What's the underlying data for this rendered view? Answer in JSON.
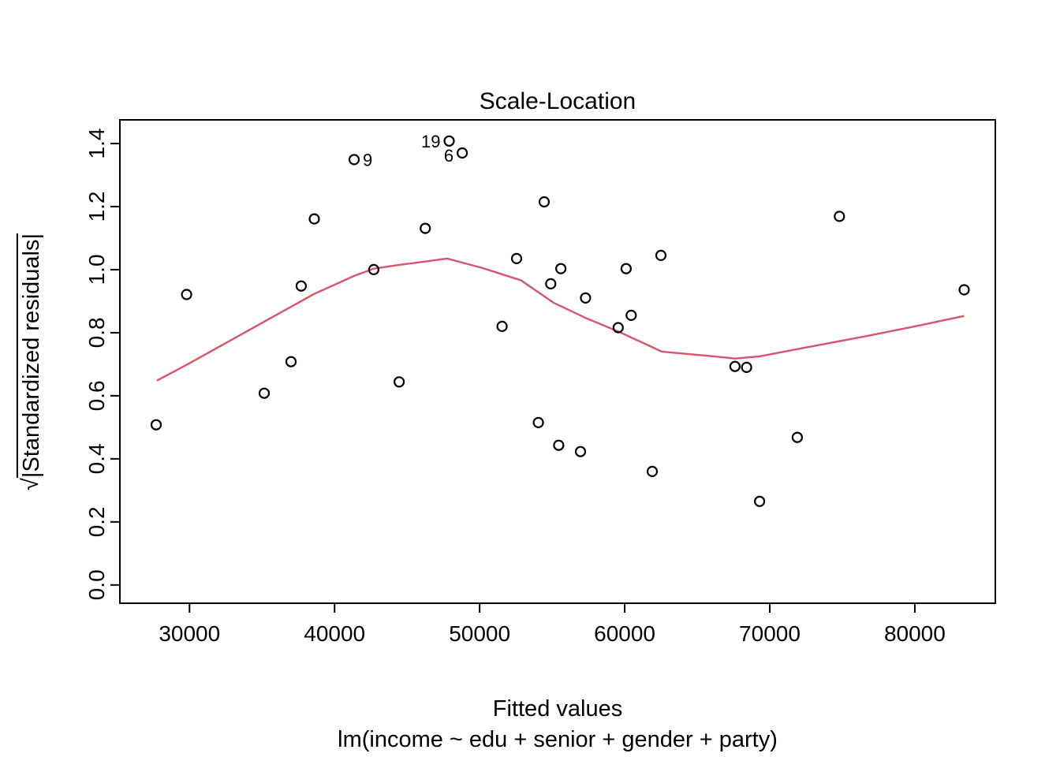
{
  "title": "Scale-Location",
  "x_axis": {
    "label": "Fitted values",
    "sub_label": "lm(income ~ edu + senior + gender + party)",
    "tick_values": [
      30000,
      40000,
      50000,
      60000,
      70000,
      80000
    ],
    "tick_labels": [
      "30000",
      "40000",
      "50000",
      "60000",
      "70000",
      "80000"
    ],
    "range": [
      25200,
      85550
    ]
  },
  "y_axis": {
    "sqrt_symbol": "√",
    "label": "|Standardized residuals|",
    "tick_values": [
      0.0,
      0.2,
      0.4,
      0.6,
      0.8,
      1.0,
      1.2,
      1.4
    ],
    "tick_labels": [
      "0.0",
      "0.2",
      "0.4",
      "0.6",
      "0.8",
      "1.0",
      "1.2",
      "1.4"
    ],
    "range": [
      -0.058,
      1.475
    ]
  },
  "colors": {
    "foreground": "#000000",
    "smooth_line": "#d9546a",
    "background": "#ffffff"
  },
  "chart_data": {
    "type": "scatter",
    "title": "Scale-Location",
    "xlabel": "Fitted values",
    "ylabel": "sqrt(|Standardized residuals|)",
    "xlim": [
      25200,
      85550
    ],
    "ylim": [
      -0.058,
      1.475
    ],
    "grid": false,
    "legend": "none",
    "points": [
      {
        "x": 27700,
        "y": 0.508
      },
      {
        "x": 29800,
        "y": 0.921
      },
      {
        "x": 35150,
        "y": 0.608
      },
      {
        "x": 37000,
        "y": 0.708
      },
      {
        "x": 37700,
        "y": 0.948
      },
      {
        "x": 38600,
        "y": 1.161
      },
      {
        "x": 41350,
        "y": 1.349,
        "label": "9",
        "label_side": "right"
      },
      {
        "x": 42700,
        "y": 1.0
      },
      {
        "x": 44450,
        "y": 0.644
      },
      {
        "x": 46250,
        "y": 1.131
      },
      {
        "x": 47900,
        "y": 1.408,
        "label": "19",
        "label_side": "left"
      },
      {
        "x": 48800,
        "y": 1.37,
        "label": "6",
        "label_side": "left"
      },
      {
        "x": 51550,
        "y": 0.82
      },
      {
        "x": 52550,
        "y": 1.035
      },
      {
        "x": 54050,
        "y": 0.515
      },
      {
        "x": 54450,
        "y": 1.215
      },
      {
        "x": 54900,
        "y": 0.955
      },
      {
        "x": 55450,
        "y": 0.443
      },
      {
        "x": 55600,
        "y": 1.003
      },
      {
        "x": 56950,
        "y": 0.423
      },
      {
        "x": 57300,
        "y": 0.91
      },
      {
        "x": 59550,
        "y": 0.816
      },
      {
        "x": 60100,
        "y": 1.003
      },
      {
        "x": 60450,
        "y": 0.855
      },
      {
        "x": 61900,
        "y": 0.36
      },
      {
        "x": 62500,
        "y": 1.045
      },
      {
        "x": 67600,
        "y": 0.693
      },
      {
        "x": 68400,
        "y": 0.69
      },
      {
        "x": 69300,
        "y": 0.265
      },
      {
        "x": 71900,
        "y": 0.468
      },
      {
        "x": 74800,
        "y": 1.169
      },
      {
        "x": 83400,
        "y": 0.936
      }
    ],
    "smooth_line": {
      "name": "loess smooth",
      "points": [
        [
          27750,
          0.648
        ],
        [
          29800,
          0.698
        ],
        [
          35150,
          0.835
        ],
        [
          38600,
          0.923
        ],
        [
          41350,
          0.98
        ],
        [
          42700,
          1.003
        ],
        [
          44450,
          1.015
        ],
        [
          46150,
          1.025
        ],
        [
          47750,
          1.035
        ],
        [
          50200,
          1.005
        ],
        [
          52850,
          0.966
        ],
        [
          55100,
          0.895
        ],
        [
          57400,
          0.845
        ],
        [
          59600,
          0.803
        ],
        [
          62550,
          0.74
        ],
        [
          66150,
          0.725
        ],
        [
          67600,
          0.718
        ],
        [
          69300,
          0.725
        ],
        [
          72700,
          0.755
        ],
        [
          76750,
          0.79
        ],
        [
          80000,
          0.82
        ],
        [
          83400,
          0.853
        ]
      ]
    }
  }
}
